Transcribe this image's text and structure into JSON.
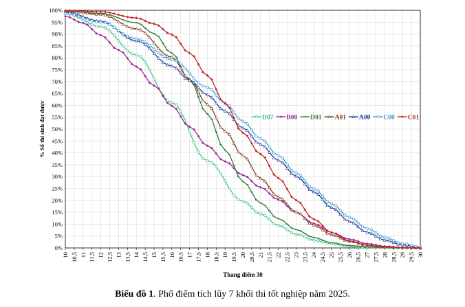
{
  "caption": {
    "label": "Biểu đồ 1",
    "text": ". Phổ điểm tích lũy 7 khối thi tốt nghiệp năm 2025."
  },
  "chart_data": {
    "type": "line",
    "title": "",
    "xlabel": "Thang điểm 30",
    "ylabel": "% Số thí sinh đạt được",
    "xlim": [
      10,
      30
    ],
    "ylim": [
      0,
      100
    ],
    "x_step": 0.25,
    "x_tick_labels": [
      "10",
      "10,5",
      "11",
      "11,5",
      "12",
      "12,5",
      "13",
      "13,5",
      "14",
      "14,5",
      "15",
      "15,5",
      "16",
      "16,5",
      "17",
      "17,5",
      "18",
      "18,5",
      "19",
      "19,5",
      "20",
      "20,5",
      "21",
      "21,5",
      "22",
      "22,5",
      "23",
      "23,5",
      "24",
      "24,5",
      "25",
      "25,5",
      "26",
      "26,5",
      "27",
      "27,5",
      "28",
      "28,5",
      "29",
      "29,5",
      "30"
    ],
    "y_tick_labels": [
      "0%",
      "5%",
      "10%",
      "15%",
      "20%",
      "25%",
      "30%",
      "35%",
      "40%",
      "45%",
      "50%",
      "55%",
      "60%",
      "65%",
      "70%",
      "75%",
      "80%",
      "85%",
      "90%",
      "95%",
      "100%"
    ],
    "grid": true,
    "legend_position": "right-center",
    "series": [
      {
        "name": "D07",
        "color": "#3dbf8a",
        "marker": "circle-open",
        "points": [
          [
            10,
            98.6
          ],
          [
            12,
            93.1
          ],
          [
            14,
            81.2
          ],
          [
            16,
            61.2
          ],
          [
            18,
            36.7
          ],
          [
            20,
            19.7
          ],
          [
            21,
            14.3
          ],
          [
            22,
            9.5
          ],
          [
            23,
            5.8
          ],
          [
            24,
            3.3
          ],
          [
            25,
            1.7
          ],
          [
            26,
            0.7
          ],
          [
            27,
            0.3
          ],
          [
            28,
            0.1
          ],
          [
            30,
            0.0
          ]
        ]
      },
      {
        "name": "B00",
        "color": "#9b2a9b",
        "marker": "diamond",
        "points": [
          [
            10,
            97.5
          ],
          [
            11,
            94.6
          ],
          [
            12,
            89.5
          ],
          [
            13,
            83.3
          ],
          [
            14,
            76.3
          ],
          [
            15,
            68.3
          ],
          [
            16,
            59.8
          ],
          [
            17,
            51.0
          ],
          [
            18,
            43.0
          ],
          [
            19,
            36.4
          ],
          [
            20,
            30.7
          ],
          [
            21,
            25.5
          ],
          [
            22,
            20.3
          ],
          [
            23,
            15.0
          ],
          [
            24,
            10.3
          ],
          [
            25,
            6.5
          ],
          [
            26,
            3.7
          ],
          [
            27,
            1.8
          ],
          [
            28,
            0.7
          ],
          [
            29,
            0.2
          ],
          [
            30,
            0.0
          ]
        ]
      },
      {
        "name": "D01",
        "color": "#2e7d32",
        "marker": "dash",
        "points": [
          [
            10,
            99.6
          ],
          [
            12,
            98.7
          ],
          [
            14,
            94.8
          ],
          [
            15,
            90.2
          ],
          [
            16,
            82.0
          ],
          [
            17,
            70.7
          ],
          [
            18,
            56.4
          ],
          [
            19,
            41.2
          ],
          [
            20,
            28.0
          ],
          [
            21,
            18.9
          ],
          [
            22,
            12.3
          ],
          [
            23,
            7.7
          ],
          [
            24,
            4.4
          ],
          [
            25,
            2.2
          ],
          [
            26,
            1.0
          ],
          [
            27,
            0.4
          ],
          [
            28,
            0.1
          ],
          [
            30,
            0.0
          ]
        ]
      },
      {
        "name": "A01",
        "color": "#7a3b1a",
        "marker": "triangle-open",
        "points": [
          [
            10,
            99.8
          ],
          [
            12,
            98.3
          ],
          [
            14,
            92.2
          ],
          [
            16,
            80.3
          ],
          [
            17,
            71.0
          ],
          [
            18,
            60.4
          ],
          [
            19,
            49.2
          ],
          [
            20,
            38.9
          ],
          [
            21,
            29.3
          ],
          [
            22,
            21.5
          ],
          [
            23,
            15.2
          ],
          [
            24,
            9.6
          ],
          [
            25,
            5.6
          ],
          [
            26,
            2.8
          ],
          [
            27,
            1.2
          ],
          [
            28,
            0.4
          ],
          [
            29,
            0.1
          ],
          [
            30,
            0.0
          ]
        ]
      },
      {
        "name": "A00",
        "color": "#1f3a93",
        "marker": "triangle-open",
        "points": [
          [
            10,
            99.3
          ],
          [
            12,
            95.4
          ],
          [
            14,
            87.2
          ],
          [
            16,
            76.6
          ],
          [
            17,
            70.6
          ],
          [
            18,
            64.4
          ],
          [
            19,
            57.6
          ],
          [
            20,
            50.5
          ],
          [
            21,
            43.6
          ],
          [
            22,
            36.9
          ],
          [
            23,
            30.2
          ],
          [
            24,
            23.6
          ],
          [
            25,
            17.0
          ],
          [
            26,
            11.2
          ],
          [
            27,
            6.6
          ],
          [
            28,
            3.3
          ],
          [
            29,
            1.3
          ],
          [
            30,
            0.3
          ]
        ]
      },
      {
        "name": "C00",
        "color": "#3a9ad9",
        "marker": "circle-open",
        "points": [
          [
            10,
            98.6
          ],
          [
            12,
            95.0
          ],
          [
            14,
            88.0
          ],
          [
            16,
            79.3
          ],
          [
            18,
            67.7
          ],
          [
            19,
            60.9
          ],
          [
            20,
            53.3
          ],
          [
            21,
            46.0
          ],
          [
            22,
            38.9
          ],
          [
            23,
            31.6
          ],
          [
            24,
            24.9
          ],
          [
            25,
            18.6
          ],
          [
            26,
            12.9
          ],
          [
            27,
            8.2
          ],
          [
            28,
            4.4
          ],
          [
            29,
            1.8
          ],
          [
            30,
            0.4
          ]
        ]
      },
      {
        "name": "C01",
        "color": "#c0282a",
        "marker": "diamond",
        "points": [
          [
            10,
            99.9
          ],
          [
            12,
            99.4
          ],
          [
            14,
            96.8
          ],
          [
            15,
            94.3
          ],
          [
            16,
            89.8
          ],
          [
            17,
            82.0
          ],
          [
            18,
            72.6
          ],
          [
            19,
            60.8
          ],
          [
            20,
            48.5
          ],
          [
            21,
            39.5
          ],
          [
            22,
            29.4
          ],
          [
            23,
            20.1
          ],
          [
            24,
            12.1
          ],
          [
            25,
            6.5
          ],
          [
            26,
            3.0
          ],
          [
            27,
            1.2
          ],
          [
            28,
            0.4
          ],
          [
            29,
            0.1
          ],
          [
            30,
            0.0
          ]
        ]
      }
    ]
  }
}
